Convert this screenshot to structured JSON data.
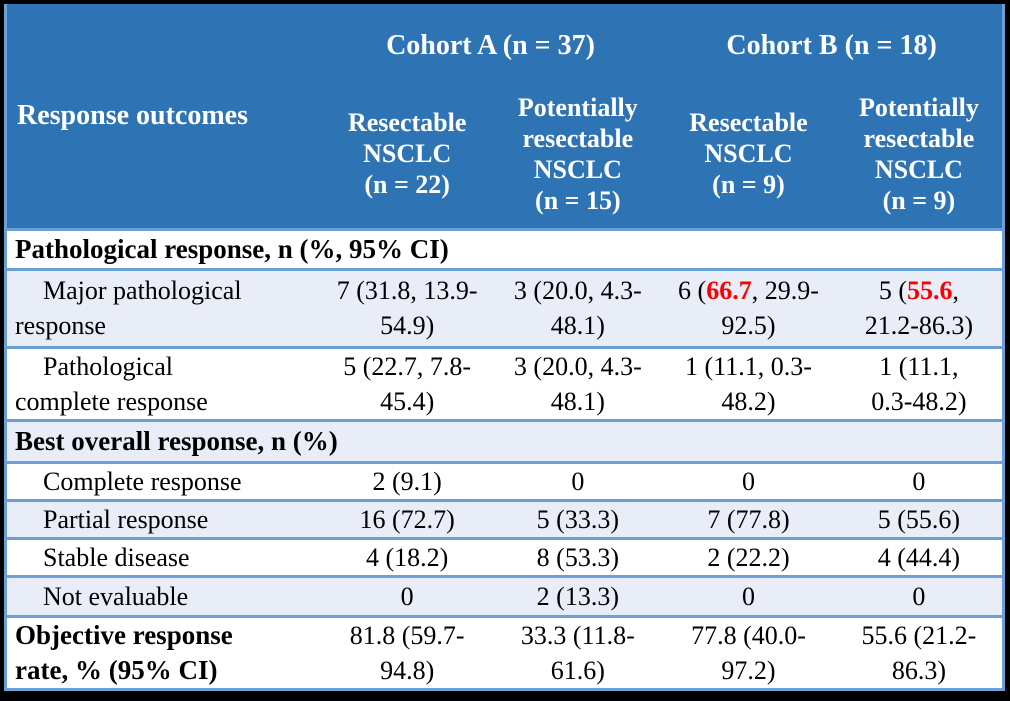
{
  "colors": {
    "header_bg": "#2E74B4",
    "header_text": "#FFFFFF",
    "alt_row_bg": "#E8EDF7",
    "row_border_blue": "#6C9FD6",
    "outer_frame_black": "#000000",
    "highlight_red": "#FF0000",
    "body_text": "#000000"
  },
  "header": {
    "corner_label": "Response outcomes",
    "cohort_a_label": "Cohort A (n = 37)",
    "cohort_b_label": "Cohort B (n = 18)",
    "col_headers": [
      "Resectable\nNSCLC\n(n = 22)",
      "Potentially\nresectable\nNSCLC\n(n = 15)",
      "Resectable\nNSCLC\n(n = 9)",
      "Potentially\nresectable\nNSCLC\n(n = 9)"
    ]
  },
  "body": {
    "pathological_section": {
      "label": "Pathological response, n (%, 95% CI)"
    },
    "major_pathological": {
      "label": "Major pathological\nresponse",
      "cohort_a_resectable": "7 (31.8, 13.9-\n54.9)",
      "cohort_a_potentially": "3 (20.0, 4.3-\n48.1)",
      "cohort_b_resectable": {
        "prefix": "6 (",
        "highlight": "66.7",
        "suffix": ", 29.9-\n92.5)"
      },
      "cohort_b_potentially": {
        "prefix": "5 (",
        "highlight": "55.6",
        "suffix": ",\n21.2-86.3)"
      }
    },
    "pathological_complete": {
      "label": "Pathological\ncomplete response",
      "cells": [
        "5 (22.7, 7.8-\n45.4)",
        "3 (20.0, 4.3-\n48.1)",
        "1 (11.1, 0.3-\n48.2)",
        "1 (11.1,\n0.3-48.2)"
      ]
    },
    "best_overall_section": {
      "label": "Best overall response, n (%)"
    },
    "complete_response": {
      "label": "Complete response",
      "cells": [
        "2 (9.1)",
        "0",
        "0",
        "0"
      ]
    },
    "partial_response": {
      "label": "Partial response",
      "cells": [
        "16 (72.7)",
        "5 (33.3)",
        "7 (77.8)",
        "5 (55.6)"
      ]
    },
    "stable_disease": {
      "label": "Stable disease",
      "cells": [
        "4 (18.2)",
        "8 (53.3)",
        "2 (22.2)",
        "4 (44.4)"
      ]
    },
    "not_evaluable": {
      "label": "Not evaluable",
      "cells": [
        "0",
        "2 (13.3)",
        "0",
        "0"
      ]
    },
    "objective_response_rate": {
      "label": "Objective response\nrate, % (95% CI)",
      "cells": [
        "81.8 (59.7-\n94.8)",
        "33.3 (11.8-\n61.6)",
        "77.8 (40.0-\n97.2)",
        "55.6 (21.2-\n86.3)"
      ]
    }
  }
}
